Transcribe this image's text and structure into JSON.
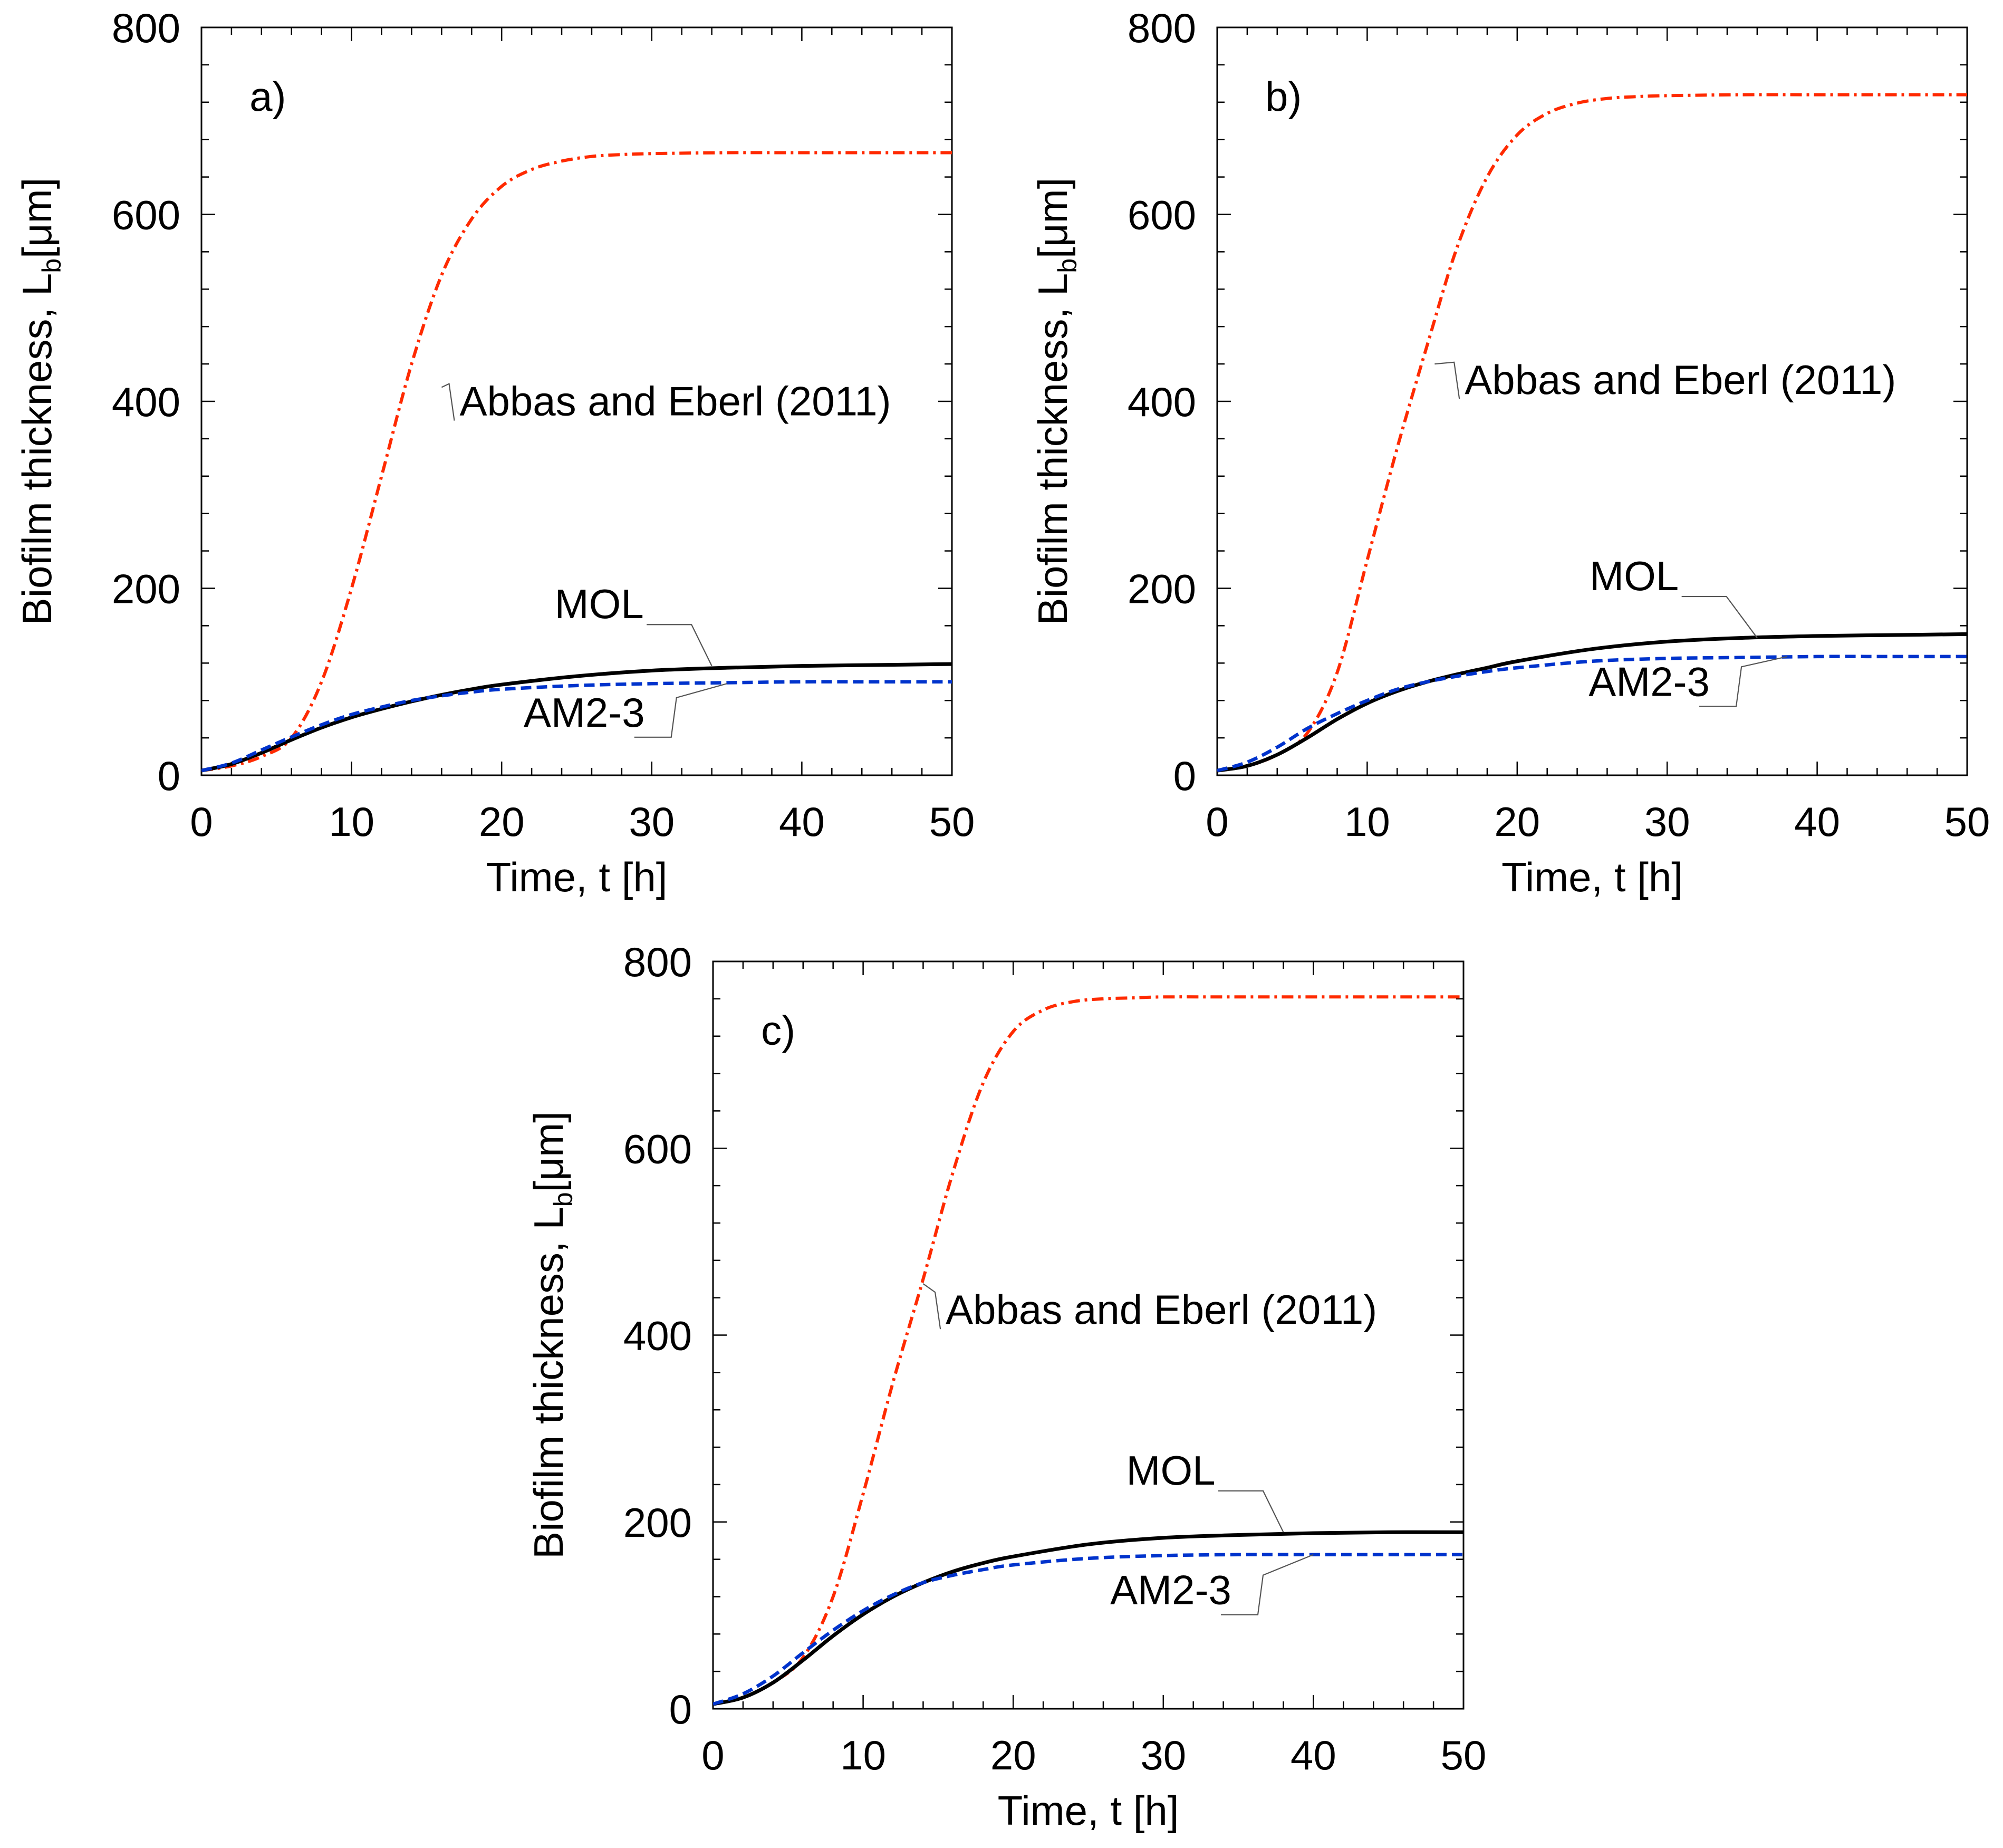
{
  "chart_data": [
    {
      "type": "line",
      "panel_label": "a)",
      "xlabel": "Time, t [h]",
      "ylabel": "Biofilm thickness, L",
      "ylabel_sub": "b",
      "ylabel_unit": "[μm]",
      "xlim": [
        0,
        50
      ],
      "ylim": [
        0,
        800
      ],
      "xticks": [
        0,
        10,
        20,
        30,
        40,
        50
      ],
      "yticks": [
        0,
        200,
        400,
        600,
        800
      ],
      "series": [
        {
          "name": "Abbas and Eberl (2011)",
          "style": "dash-dot",
          "color": "#ff2a00",
          "x": [
            0,
            2,
            4,
            6,
            8,
            10,
            12,
            14,
            16,
            18,
            20,
            22,
            24,
            26,
            28,
            30,
            35,
            40,
            45,
            50
          ],
          "y": [
            5,
            10,
            20,
            40,
            100,
            200,
            320,
            440,
            535,
            595,
            630,
            648,
            657,
            662,
            664,
            665,
            666,
            666,
            666,
            666
          ]
        },
        {
          "name": "MOL",
          "style": "solid",
          "color": "#000000",
          "x": [
            0,
            2,
            4,
            6,
            8,
            10,
            12,
            14,
            16,
            18,
            20,
            25,
            30,
            35,
            40,
            45,
            50
          ],
          "y": [
            5,
            12,
            24,
            38,
            51,
            62,
            71,
            79,
            86,
            92,
            97,
            106,
            112,
            115,
            117,
            118,
            119
          ]
        },
        {
          "name": "AM2-3",
          "style": "dashed",
          "color": "#0033cc",
          "x": [
            0,
            2,
            4,
            6,
            8,
            10,
            12,
            14,
            16,
            18,
            20,
            25,
            30,
            35,
            40,
            45,
            50
          ],
          "y": [
            5,
            13,
            27,
            41,
            54,
            65,
            73,
            80,
            85,
            89,
            92,
            96,
            98,
            99,
            100,
            100,
            100
          ]
        }
      ]
    },
    {
      "type": "line",
      "panel_label": "b)",
      "xlabel": "Time, t [h]",
      "ylabel": "Biofilm thickness, L",
      "ylabel_sub": "b",
      "ylabel_unit": "[μm]",
      "xlim": [
        0,
        50
      ],
      "ylim": [
        0,
        800
      ],
      "xticks": [
        0,
        10,
        20,
        30,
        40,
        50
      ],
      "yticks": [
        0,
        200,
        400,
        600,
        800
      ],
      "series": [
        {
          "name": "Abbas and Eberl (2011)",
          "style": "dash-dot",
          "color": "#ff2a00",
          "x": [
            0,
            2,
            4,
            6,
            8,
            10,
            12,
            14,
            16,
            18,
            20,
            22,
            24,
            26,
            28,
            30,
            35,
            40,
            45,
            50
          ],
          "y": [
            5,
            10,
            22,
            45,
            110,
            230,
            350,
            460,
            565,
            640,
            685,
            708,
            719,
            724,
            726,
            727,
            728,
            728,
            728,
            728
          ]
        },
        {
          "name": "MOL",
          "style": "solid",
          "color": "#000000",
          "x": [
            0,
            2,
            4,
            6,
            8,
            10,
            12,
            14,
            16,
            18,
            20,
            25,
            30,
            35,
            40,
            45,
            50
          ],
          "y": [
            5,
            10,
            22,
            40,
            60,
            77,
            90,
            100,
            108,
            115,
            122,
            135,
            143,
            147,
            149,
            150,
            151
          ]
        },
        {
          "name": "AM2-3",
          "style": "dashed",
          "color": "#0033cc",
          "x": [
            0,
            2,
            4,
            6,
            8,
            10,
            12,
            14,
            16,
            18,
            20,
            25,
            30,
            35,
            40,
            45,
            50
          ],
          "y": [
            5,
            14,
            30,
            50,
            66,
            80,
            92,
            100,
            106,
            111,
            115,
            122,
            125,
            126,
            127,
            127,
            127
          ]
        }
      ]
    },
    {
      "type": "line",
      "panel_label": "c)",
      "xlabel": "Time, t [h]",
      "ylabel": "Biofilm thickness, L",
      "ylabel_sub": "b",
      "ylabel_unit": "[μm]",
      "xlim": [
        0,
        50
      ],
      "ylim": [
        0,
        800
      ],
      "xticks": [
        0,
        10,
        20,
        30,
        40,
        50
      ],
      "yticks": [
        0,
        200,
        400,
        600,
        800
      ],
      "series": [
        {
          "name": "Abbas and Eberl (2011)",
          "style": "dash-dot",
          "color": "#ff2a00",
          "x": [
            0,
            2,
            4,
            6,
            8,
            10,
            12,
            14,
            16,
            18,
            20,
            22,
            24,
            26,
            28,
            30,
            35,
            40,
            45,
            50
          ],
          "y": [
            5,
            12,
            28,
            55,
            120,
            230,
            350,
            460,
            575,
            670,
            725,
            748,
            757,
            760,
            761,
            762,
            762,
            762,
            762,
            762
          ]
        },
        {
          "name": "MOL",
          "style": "solid",
          "color": "#000000",
          "x": [
            0,
            2,
            4,
            6,
            8,
            10,
            12,
            14,
            16,
            18,
            20,
            25,
            30,
            35,
            40,
            45,
            50
          ],
          "y": [
            5,
            12,
            28,
            52,
            78,
            101,
            120,
            135,
            147,
            156,
            163,
            176,
            183,
            186,
            188,
            189,
            189
          ]
        },
        {
          "name": "AM2-3",
          "style": "dashed",
          "color": "#0033cc",
          "x": [
            0,
            2,
            4,
            6,
            8,
            10,
            12,
            14,
            16,
            18,
            20,
            25,
            30,
            35,
            40,
            45,
            50
          ],
          "y": [
            5,
            16,
            35,
            60,
            84,
            105,
            122,
            135,
            143,
            149,
            154,
            161,
            164,
            165,
            165,
            165,
            165
          ]
        }
      ]
    }
  ]
}
